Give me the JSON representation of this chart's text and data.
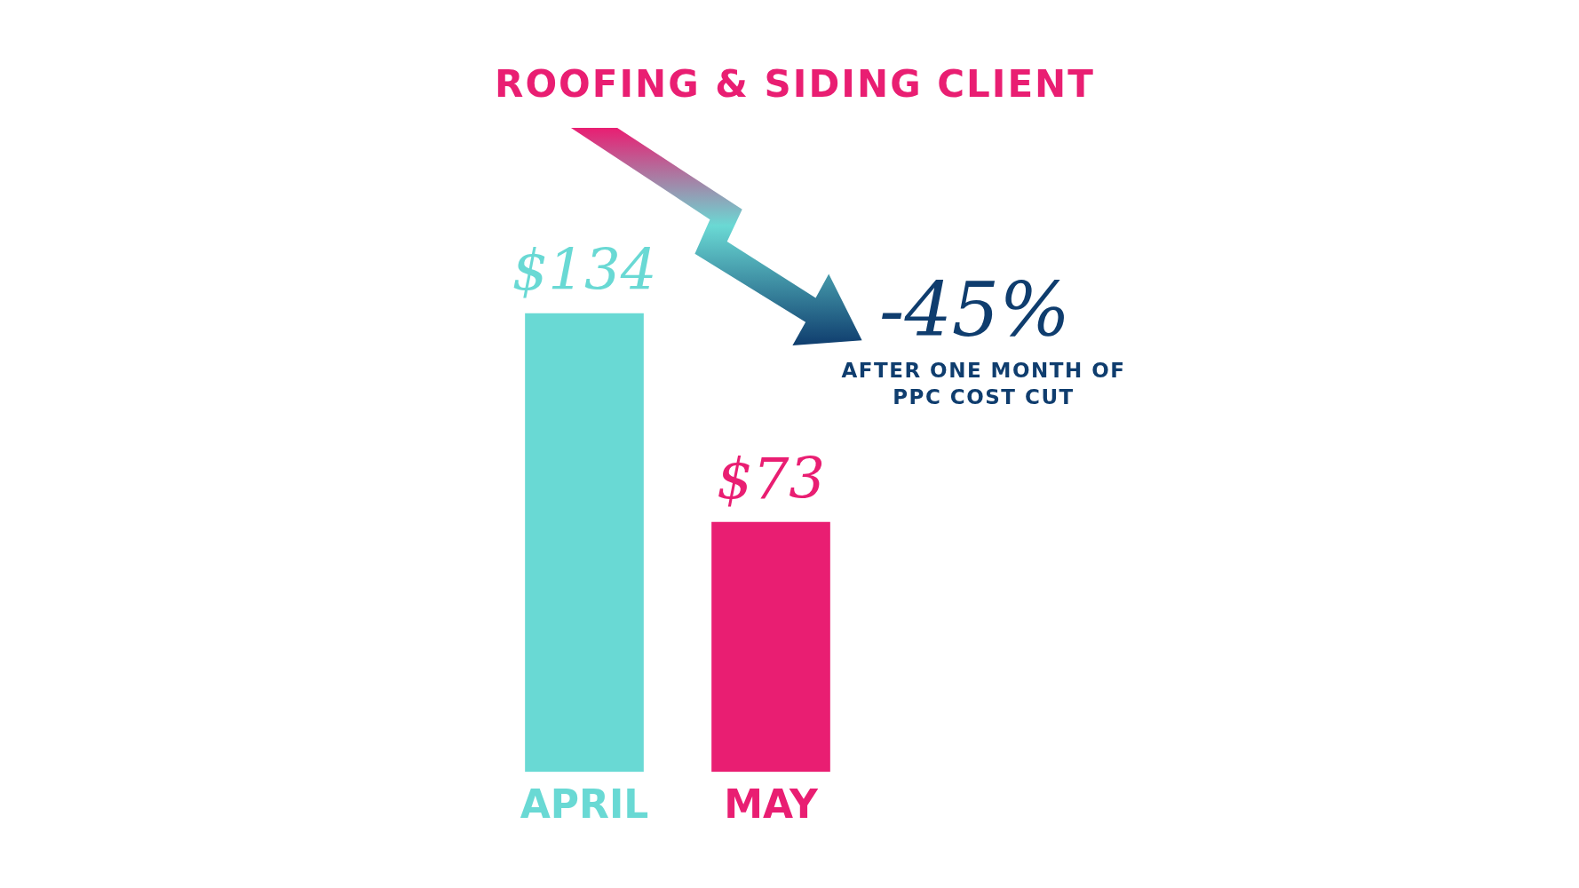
{
  "chart_data": {
    "type": "bar",
    "title": "ROOFING & SIDING CLIENT",
    "categories": [
      "APRIL",
      "MAY"
    ],
    "values": [
      134,
      73
    ],
    "value_labels": [
      "$134",
      "$73"
    ],
    "colors": [
      "#69d9d4",
      "#e91e72"
    ],
    "annotations": [
      "-45%",
      "AFTER ONE MONTH OF PPC COST CUT"
    ],
    "grid": false,
    "legend": false
  }
}
